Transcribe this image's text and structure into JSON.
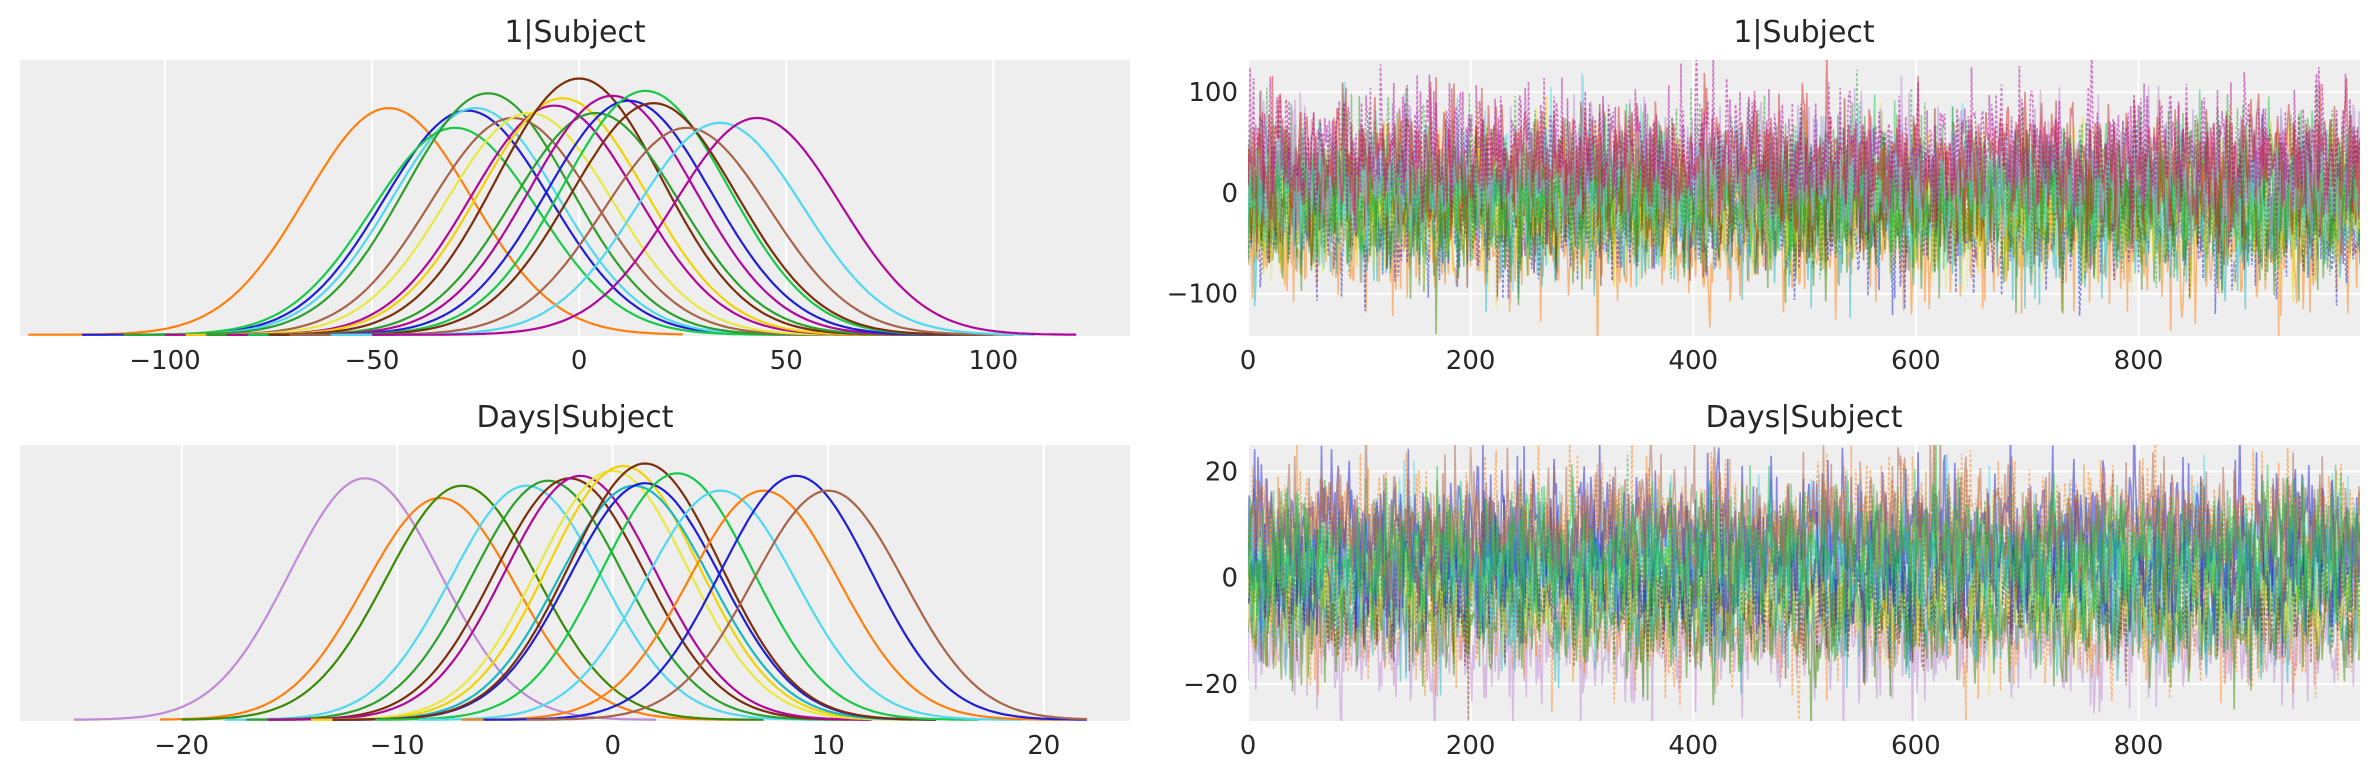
{
  "palette": [
    "#1f1fd6",
    "#ff7f0e",
    "#2ca02c",
    "#e8e841",
    "#b0089a",
    "#7a2e0c",
    "#18c94a",
    "#4fd8ef",
    "#a8644a",
    "#d62728",
    "#c08ad6",
    "#3a8a00",
    "#19b8c2",
    "#f2d200",
    "#ff8c00",
    "#8c1c8c"
  ],
  "chart_data": [
    {
      "id": "kde-intercept",
      "type": "line",
      "title": "1|Subject",
      "xlim": [
        -135,
        133
      ],
      "ylim": [
        0,
        1.12
      ],
      "grid": true,
      "yticks": false,
      "xticks": [
        -100,
        -50,
        0,
        50,
        100
      ],
      "xtick_labels": [
        "−100",
        "−50",
        "0",
        "50",
        "100"
      ],
      "sd": 20,
      "series": [
        {
          "mode": -46,
          "lo": -133,
          "hi": 25,
          "color": "#ff7f0e",
          "peak": 0.92
        },
        {
          "mode": -27,
          "lo": -120,
          "hi": 65,
          "color": "#1f1fd6",
          "peak": 0.91
        },
        {
          "mode": -25,
          "lo": -110,
          "hi": 70,
          "color": "#4fd8ef",
          "peak": 0.92
        },
        {
          "mode": -30,
          "lo": -110,
          "hi": 65,
          "color": "#18c94a",
          "peak": 0.84
        },
        {
          "mode": -22,
          "lo": -110,
          "hi": 68,
          "color": "#2ca02c",
          "peak": 0.98
        },
        {
          "mode": -16,
          "lo": -100,
          "hi": 70,
          "color": "#a8644a",
          "peak": 0.88
        },
        {
          "mode": -12,
          "lo": -100,
          "hi": 75,
          "color": "#e8e841",
          "peak": 0.9
        },
        {
          "mode": -6,
          "lo": -100,
          "hi": 80,
          "color": "#b0089a",
          "peak": 0.93
        },
        {
          "mode": -4,
          "lo": -95,
          "hi": 85,
          "color": "#f2d200",
          "peak": 0.96
        },
        {
          "mode": 0,
          "lo": -90,
          "hi": 90,
          "color": "#7a2e0c",
          "peak": 1.04
        },
        {
          "mode": 4,
          "lo": -90,
          "hi": 90,
          "color": "#2ca02c",
          "peak": 0.9
        },
        {
          "mode": 8,
          "lo": -85,
          "hi": 95,
          "color": "#b0089a",
          "peak": 0.97
        },
        {
          "mode": 12,
          "lo": -80,
          "hi": 100,
          "color": "#1f1fd6",
          "peak": 0.95
        },
        {
          "mode": 16,
          "lo": -80,
          "hi": 100,
          "color": "#18c94a",
          "peak": 0.99
        },
        {
          "mode": 18,
          "lo": -75,
          "hi": 100,
          "color": "#7a2e0c",
          "peak": 0.94
        },
        {
          "mode": 26,
          "lo": -70,
          "hi": 105,
          "color": "#a8644a",
          "peak": 0.84
        },
        {
          "mode": 34,
          "lo": -60,
          "hi": 110,
          "color": "#4fd8ef",
          "peak": 0.86
        },
        {
          "mode": 43,
          "lo": -50,
          "hi": 120,
          "color": "#b0089a",
          "peak": 0.88
        }
      ]
    },
    {
      "id": "trace-intercept",
      "type": "line",
      "title": "1|Subject",
      "xlim": [
        0,
        999
      ],
      "ylim": [
        -142,
        132
      ],
      "grid": true,
      "xticks": [
        0,
        200,
        400,
        600,
        800
      ],
      "xtick_labels": [
        "0",
        "200",
        "400",
        "600",
        "800"
      ],
      "yticks": [
        -100,
        0,
        100
      ],
      "ytick_labels": [
        "−100",
        "0",
        "100"
      ],
      "draws": 1000,
      "series": [
        {
          "mean": -45,
          "color": "#ff7f0e"
        },
        {
          "mean": -27,
          "color": "#1f1fd6"
        },
        {
          "mean": -25,
          "color": "#19b8c2"
        },
        {
          "mean": -22,
          "color": "#3a8a00"
        },
        {
          "mean": -12,
          "color": "#e8e841"
        },
        {
          "mean": -4,
          "color": "#f2d200"
        },
        {
          "mean": 0,
          "color": "#7a2e0c"
        },
        {
          "mean": 4,
          "color": "#2ca02c"
        },
        {
          "mean": 8,
          "color": "#18c94a"
        },
        {
          "mean": 12,
          "color": "#4fd8ef"
        },
        {
          "mean": 16,
          "color": "#2ca02c"
        },
        {
          "mean": 26,
          "color": "#c08ad6"
        },
        {
          "mean": 34,
          "color": "#d62728"
        },
        {
          "mean": 43,
          "color": "#b0089a"
        }
      ]
    },
    {
      "id": "kde-slope",
      "type": "line",
      "title": "Days|Subject",
      "xlim": [
        -27.5,
        24
      ],
      "ylim": [
        0,
        1.12
      ],
      "grid": true,
      "yticks": false,
      "xticks": [
        -20,
        -10,
        0,
        10,
        20
      ],
      "xtick_labels": [
        "−20",
        "−10",
        "0",
        "10",
        "20"
      ],
      "sd": 3.5,
      "series": [
        {
          "mode": -11.5,
          "lo": -25,
          "hi": 2,
          "color": "#c08ad6",
          "peak": 0.98
        },
        {
          "mode": -8,
          "lo": -21,
          "hi": 6,
          "color": "#ff7f0e",
          "peak": 0.9
        },
        {
          "mode": -7,
          "lo": -20,
          "hi": 7,
          "color": "#3a8a00",
          "peak": 0.95
        },
        {
          "mode": -4,
          "lo": -18,
          "hi": 10,
          "color": "#4fd8ef",
          "peak": 0.95
        },
        {
          "mode": -3,
          "lo": -17,
          "hi": 11,
          "color": "#2ca02c",
          "peak": 0.97
        },
        {
          "mode": -2,
          "lo": -16,
          "hi": 12,
          "color": "#7a2e0c",
          "peak": 0.98
        },
        {
          "mode": -1.5,
          "lo": -16,
          "hi": 12,
          "color": "#b0089a",
          "peak": 0.99
        },
        {
          "mode": 0,
          "lo": -14,
          "hi": 14,
          "color": "#e8e841",
          "peak": 1.01
        },
        {
          "mode": 0.5,
          "lo": -14,
          "hi": 14,
          "color": "#f2d200",
          "peak": 1.03
        },
        {
          "mode": 1,
          "lo": -13,
          "hi": 15,
          "color": "#19b8c2",
          "peak": 0.95
        },
        {
          "mode": 1.5,
          "lo": -13,
          "hi": 15,
          "color": "#1f1fd6",
          "peak": 0.96
        },
        {
          "mode": 1.5,
          "lo": -13,
          "hi": 15,
          "color": "#7a2e0c",
          "peak": 1.04
        },
        {
          "mode": 3,
          "lo": -11,
          "hi": 17,
          "color": "#18c94a",
          "peak": 1.0
        },
        {
          "mode": 5,
          "lo": -9,
          "hi": 19,
          "color": "#4fd8ef",
          "peak": 0.93
        },
        {
          "mode": 7,
          "lo": -7,
          "hi": 21,
          "color": "#ff7f0e",
          "peak": 0.93
        },
        {
          "mode": 8.5,
          "lo": -6,
          "hi": 22,
          "color": "#1f1fd6",
          "peak": 0.99
        },
        {
          "mode": 10,
          "lo": -4,
          "hi": 22,
          "color": "#a8644a",
          "peak": 0.93
        }
      ]
    },
    {
      "id": "trace-slope",
      "type": "line",
      "title": "Days|Subject",
      "xlim": [
        0,
        999
      ],
      "ylim": [
        -27,
        25
      ],
      "grid": true,
      "xticks": [
        0,
        200,
        400,
        600,
        800
      ],
      "xtick_labels": [
        "0",
        "200",
        "400",
        "600",
        "800"
      ],
      "yticks": [
        -20,
        0,
        20
      ],
      "ytick_labels": [
        "−20",
        "0",
        "20"
      ],
      "draws": 1000,
      "series": [
        {
          "mean": -11.5,
          "color": "#c08ad6"
        },
        {
          "mean": -8,
          "color": "#ff7f0e"
        },
        {
          "mean": -7,
          "color": "#3a8a00"
        },
        {
          "mean": -4,
          "color": "#19b8c2"
        },
        {
          "mean": -2,
          "color": "#7a2e0c"
        },
        {
          "mean": 0,
          "color": "#e8e841"
        },
        {
          "mean": 1.5,
          "color": "#1f1fd6"
        },
        {
          "mean": 3,
          "color": "#2ca02c"
        },
        {
          "mean": 5,
          "color": "#4fd8ef"
        },
        {
          "mean": 8.5,
          "color": "#1f1fd6"
        },
        {
          "mean": 10,
          "color": "#ff7f0e"
        },
        {
          "mean": 10,
          "color": "#a8644a"
        },
        {
          "mean": 4,
          "color": "#18c94a"
        }
      ]
    }
  ]
}
